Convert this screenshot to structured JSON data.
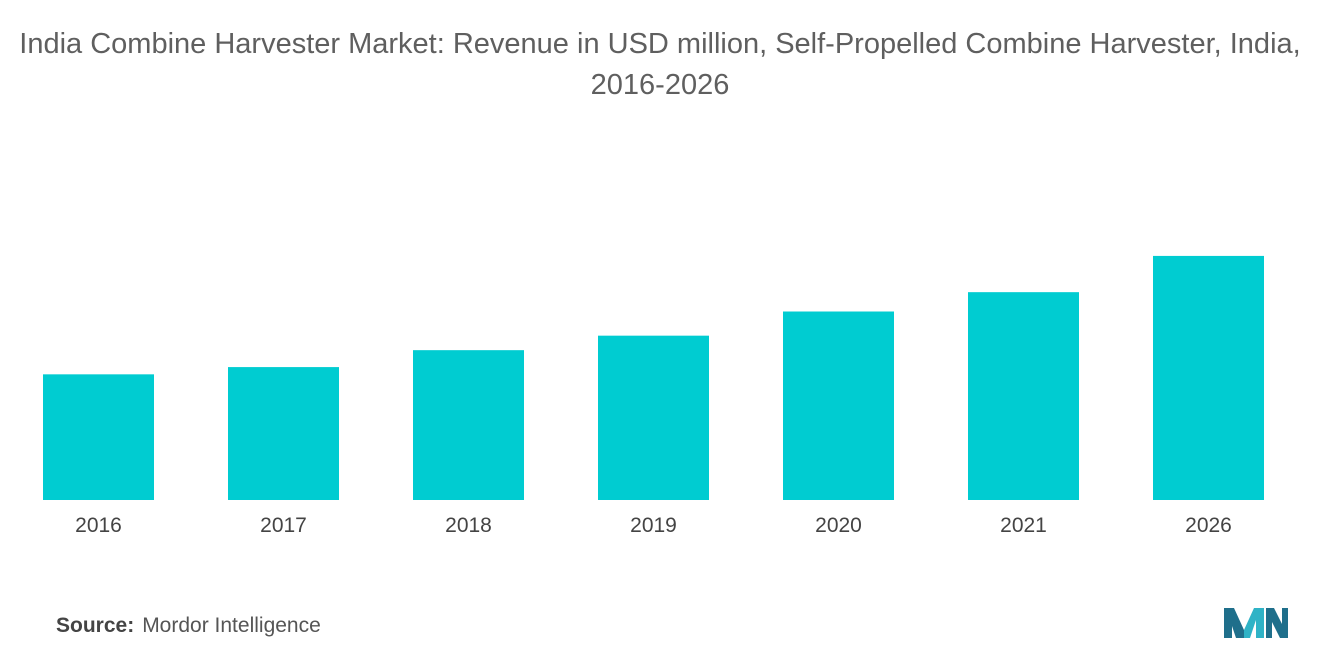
{
  "chart_data": {
    "type": "bar",
    "title": "India Combine Harvester Market: Revenue in USD million, Self-Propelled Combine Harvester, India, 2016-2026",
    "xlabel": "",
    "ylabel": "",
    "categories": [
      "2016",
      "2017",
      "2018",
      "2019",
      "2020",
      "2021",
      "2026"
    ],
    "values": [
      52,
      55,
      62,
      68,
      78,
      86,
      101
    ],
    "ylim": [
      0,
      120
    ],
    "grid": false,
    "legend": "none",
    "bar_color": "#00CCD1"
  },
  "source": {
    "label": "Source:",
    "text": "Mordor Intelligence"
  },
  "logo": {
    "icon": "mordor-intelligence-logo",
    "colors": [
      "#1F6F8B",
      "#2FB3C6"
    ]
  }
}
